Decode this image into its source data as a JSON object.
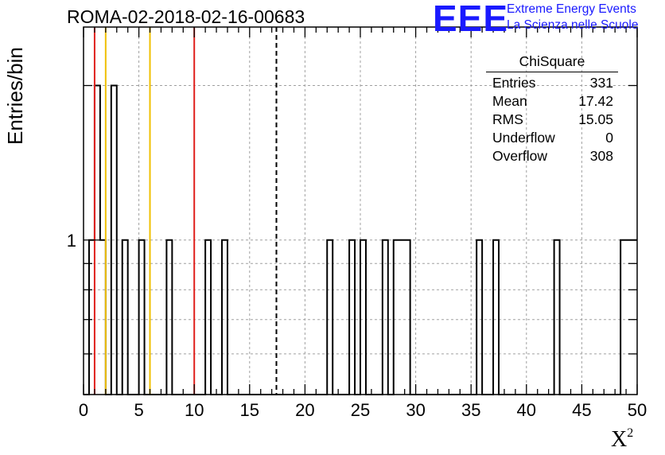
{
  "header": {
    "run_id": "ROMA-02-2018-02-16-00683",
    "logo_mark": "EEE",
    "logo_line1": "Extreme Energy Events",
    "logo_line2": "La Scienza nelle Scuole"
  },
  "stats_box": {
    "title": "ChiSquare",
    "rows": [
      {
        "label": "Entries",
        "value": "331"
      },
      {
        "label": "Mean",
        "value": "17.42"
      },
      {
        "label": "RMS",
        "value": "15.05"
      },
      {
        "label": "Underflow",
        "value": "0"
      },
      {
        "label": "Overflow",
        "value": "308"
      }
    ]
  },
  "chart_data": {
    "type": "bar",
    "title": "ROMA-02-2018-02-16-00683",
    "xlabel": "X²",
    "ylabel": "Entries/bin",
    "xlim": [
      0,
      50
    ],
    "ylim_log": [
      0.5,
      2.6
    ],
    "y_scale": "log",
    "grid": true,
    "bin_width": 0.5,
    "x_ticks": [
      0,
      5,
      10,
      15,
      20,
      25,
      30,
      35,
      40,
      45,
      50
    ],
    "y_tick_labels": [
      {
        "value": 1,
        "label": "1"
      }
    ],
    "bins": [
      {
        "x": 0.5,
        "count": 1
      },
      {
        "x": 1.0,
        "count": 2
      },
      {
        "x": 1.5,
        "count": 1
      },
      {
        "x": 2.5,
        "count": 2
      },
      {
        "x": 3.5,
        "count": 1
      },
      {
        "x": 5.0,
        "count": 1
      },
      {
        "x": 7.5,
        "count": 1
      },
      {
        "x": 11.0,
        "count": 1
      },
      {
        "x": 12.5,
        "count": 1
      },
      {
        "x": 22.0,
        "count": 1
      },
      {
        "x": 24.0,
        "count": 1
      },
      {
        "x": 25.0,
        "count": 1
      },
      {
        "x": 27.0,
        "count": 1
      },
      {
        "x": 28.0,
        "count": 1
      },
      {
        "x": 28.5,
        "count": 1
      },
      {
        "x": 29.0,
        "count": 1
      },
      {
        "x": 35.5,
        "count": 1
      },
      {
        "x": 37.0,
        "count": 1
      },
      {
        "x": 42.5,
        "count": 1
      },
      {
        "x": 48.5,
        "count": 1
      },
      {
        "x": 49.0,
        "count": 1
      },
      {
        "x": 49.5,
        "count": 1
      }
    ],
    "reference_lines": [
      {
        "x": 1,
        "color": "#e0201c",
        "style": "solid"
      },
      {
        "x": 2,
        "color": "#f0c000",
        "style": "solid"
      },
      {
        "x": 6,
        "color": "#f0c000",
        "style": "solid"
      },
      {
        "x": 10,
        "color": "#e0201c",
        "style": "solid"
      },
      {
        "x": 17.42,
        "color": "#000000",
        "style": "dashed"
      }
    ]
  }
}
